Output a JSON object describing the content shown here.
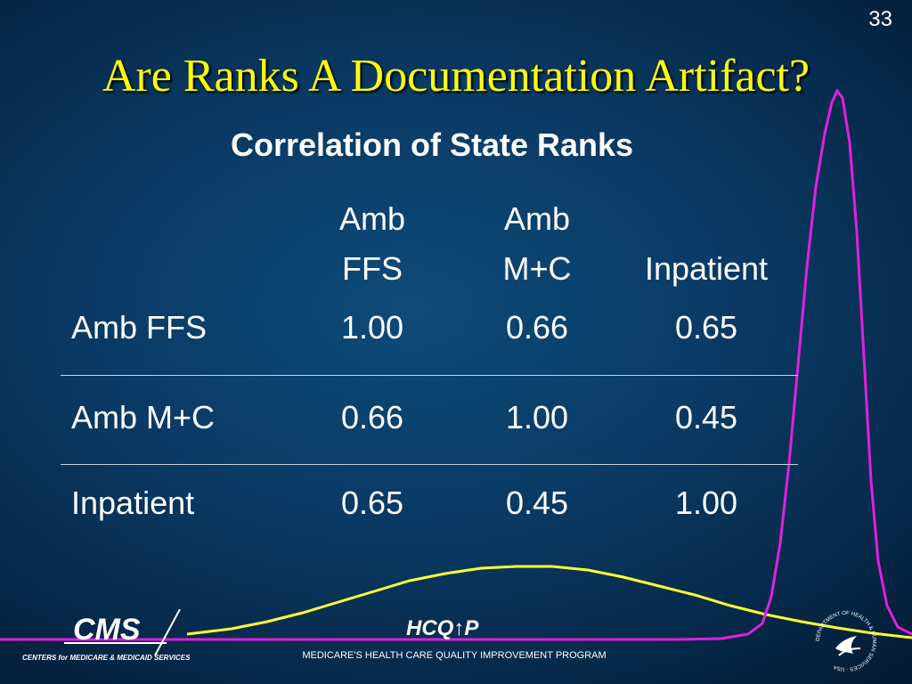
{
  "slide": {
    "number": "33",
    "title": "Are Ranks A Documentation Artifact?",
    "subtitle": "Correlation of State Ranks"
  },
  "table": {
    "headers": [
      {
        "line1": "Amb",
        "line2": "FFS"
      },
      {
        "line1": "Amb",
        "line2": "M+C"
      },
      {
        "line1": "",
        "line2": "Inpatient"
      }
    ],
    "rows": [
      {
        "label": "Amb FFS",
        "values": [
          "1.00",
          "0.66",
          "0.65"
        ]
      },
      {
        "label": "Amb M+C",
        "values": [
          "0.66",
          "1.00",
          "0.45"
        ]
      },
      {
        "label": "Inpatient",
        "values": [
          "0.65",
          "0.45",
          "1.00"
        ]
      }
    ]
  },
  "footer": {
    "program_logo": "HCQ↑P",
    "program_name": "MEDICARE'S HEALTH CARE QUALITY IMPROVEMENT PROGRAM",
    "cms_logo": "CMS",
    "cms_tagline": "CENTERS for MEDICARE & MEDICAID SERVICES",
    "hhs_seal_text": "DEPARTMENT OF HEALTH & HUMAN SERVICES · USA"
  },
  "decorations": {
    "curve_colors": {
      "wide": "#ffff33",
      "narrow": "#e020e0"
    },
    "icons": [
      "cms-logo-icon",
      "hhs-seal-icon"
    ]
  }
}
